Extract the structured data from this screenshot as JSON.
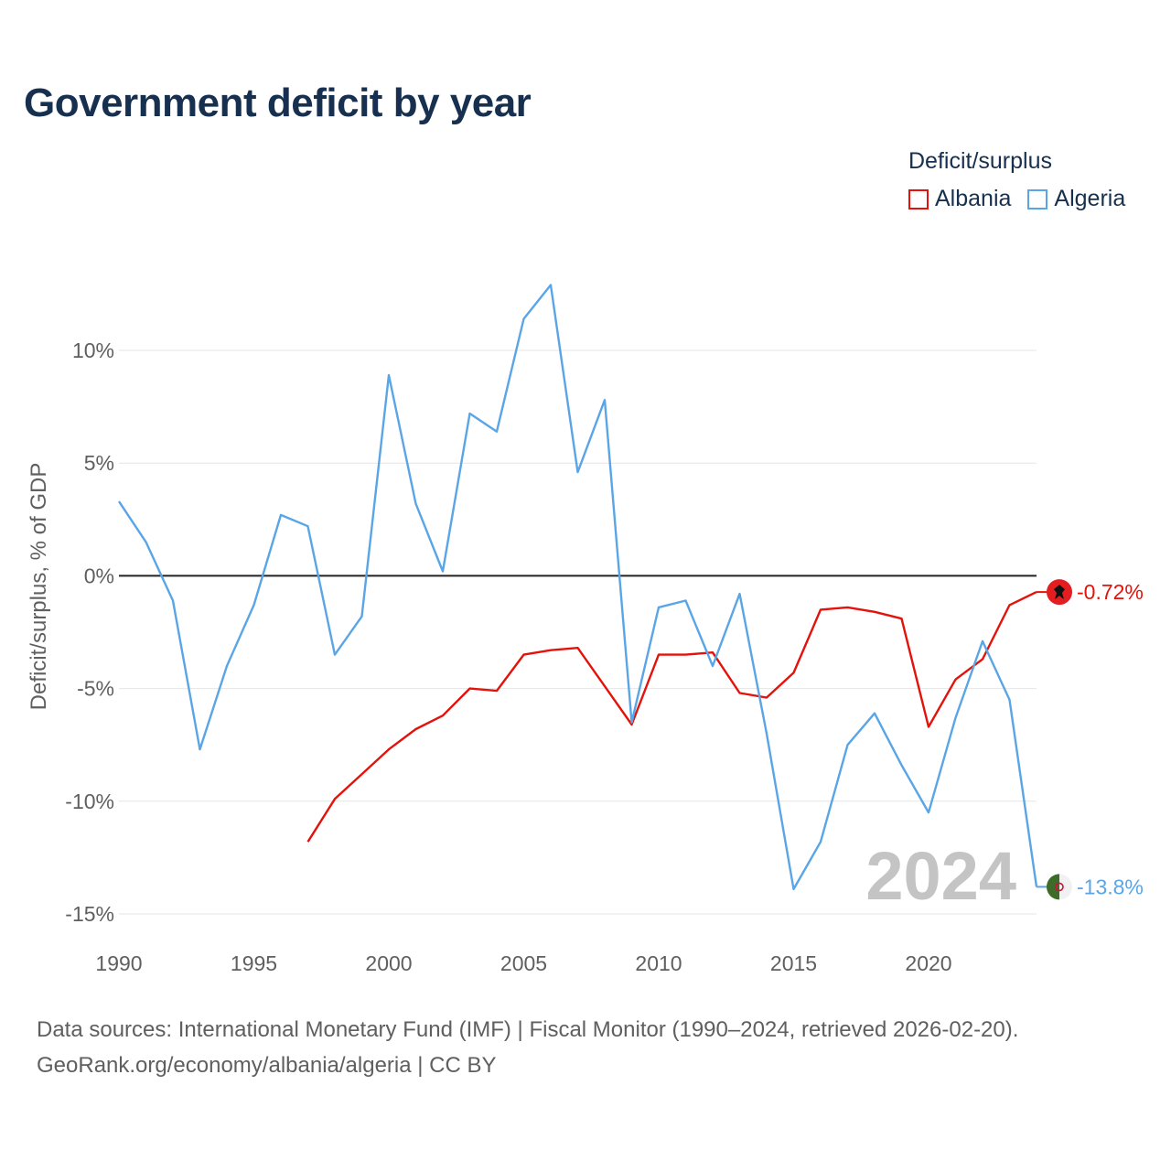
{
  "title": "Government deficit by year",
  "legend": {
    "title": "Deficit/surplus",
    "items": [
      {
        "label": "Albania",
        "color": "#e3120b"
      },
      {
        "label": "Algeria",
        "color": "#5aa5e6"
      }
    ]
  },
  "year_watermark": "2024",
  "footer": {
    "line1": "Data sources: International Monetary Fund (IMF) | Fiscal Monitor (1990–2024, retrieved 2026-02-20).",
    "line2": "GeoRank.org/economy/albania/algeria | CC BY"
  },
  "chart_data": {
    "type": "line",
    "title": "Government deficit by year",
    "xlabel": "",
    "ylabel": "Deficit/surplus, % of GDP",
    "xlim": [
      1990,
      2024
    ],
    "ylim": [
      -15,
      10
    ],
    "x_ticks": [
      1990,
      1995,
      2000,
      2005,
      2010,
      2015,
      2020
    ],
    "x_tick_labels": [
      "1990",
      "1995",
      "2000",
      "2005",
      "2010",
      "2015",
      "2020"
    ],
    "y_ticks": [
      10,
      5,
      0,
      -5,
      -10,
      -15
    ],
    "y_tick_labels": [
      "10%",
      "5%",
      "0%",
      "-5%",
      "-10%",
      "-15%"
    ],
    "legend_position": "top-right",
    "series": [
      {
        "name": "Albania",
        "color": "#e3120b",
        "x": [
          1997,
          1998,
          1999,
          2000,
          2001,
          2002,
          2003,
          2004,
          2005,
          2006,
          2007,
          2008,
          2009,
          2010,
          2011,
          2012,
          2013,
          2014,
          2015,
          2016,
          2017,
          2018,
          2019,
          2020,
          2021,
          2022,
          2023,
          2024
        ],
        "values": [
          -11.8,
          -9.9,
          -8.8,
          -7.7,
          -6.8,
          -6.2,
          -5.0,
          -5.1,
          -3.5,
          -3.3,
          -3.2,
          -4.9,
          -6.6,
          -3.5,
          -3.5,
          -3.4,
          -5.2,
          -5.4,
          -4.3,
          -1.5,
          -1.4,
          -1.6,
          -1.9,
          -6.7,
          -4.6,
          -3.7,
          -1.3,
          -0.72
        ],
        "end_label": "-0.72%"
      },
      {
        "name": "Algeria",
        "color": "#5aa5e6",
        "x": [
          1990,
          1991,
          1992,
          1993,
          1994,
          1995,
          1996,
          1997,
          1998,
          1999,
          2000,
          2001,
          2002,
          2003,
          2004,
          2005,
          2006,
          2007,
          2008,
          2009,
          2010,
          2011,
          2012,
          2013,
          2014,
          2015,
          2016,
          2017,
          2018,
          2019,
          2020,
          2021,
          2022,
          2023,
          2024
        ],
        "values": [
          3.3,
          1.5,
          -1.1,
          -7.7,
          -4.0,
          -1.3,
          2.7,
          2.2,
          -3.5,
          -1.8,
          8.9,
          3.2,
          0.2,
          7.2,
          6.4,
          11.4,
          12.9,
          4.6,
          7.8,
          -6.5,
          -1.4,
          -1.1,
          -4.0,
          -0.8,
          -7.0,
          -13.9,
          -11.8,
          -7.5,
          -6.1,
          -8.4,
          -10.5,
          -6.3,
          -2.9,
          -5.5,
          -13.8
        ],
        "end_label": "-13.8%"
      }
    ]
  }
}
